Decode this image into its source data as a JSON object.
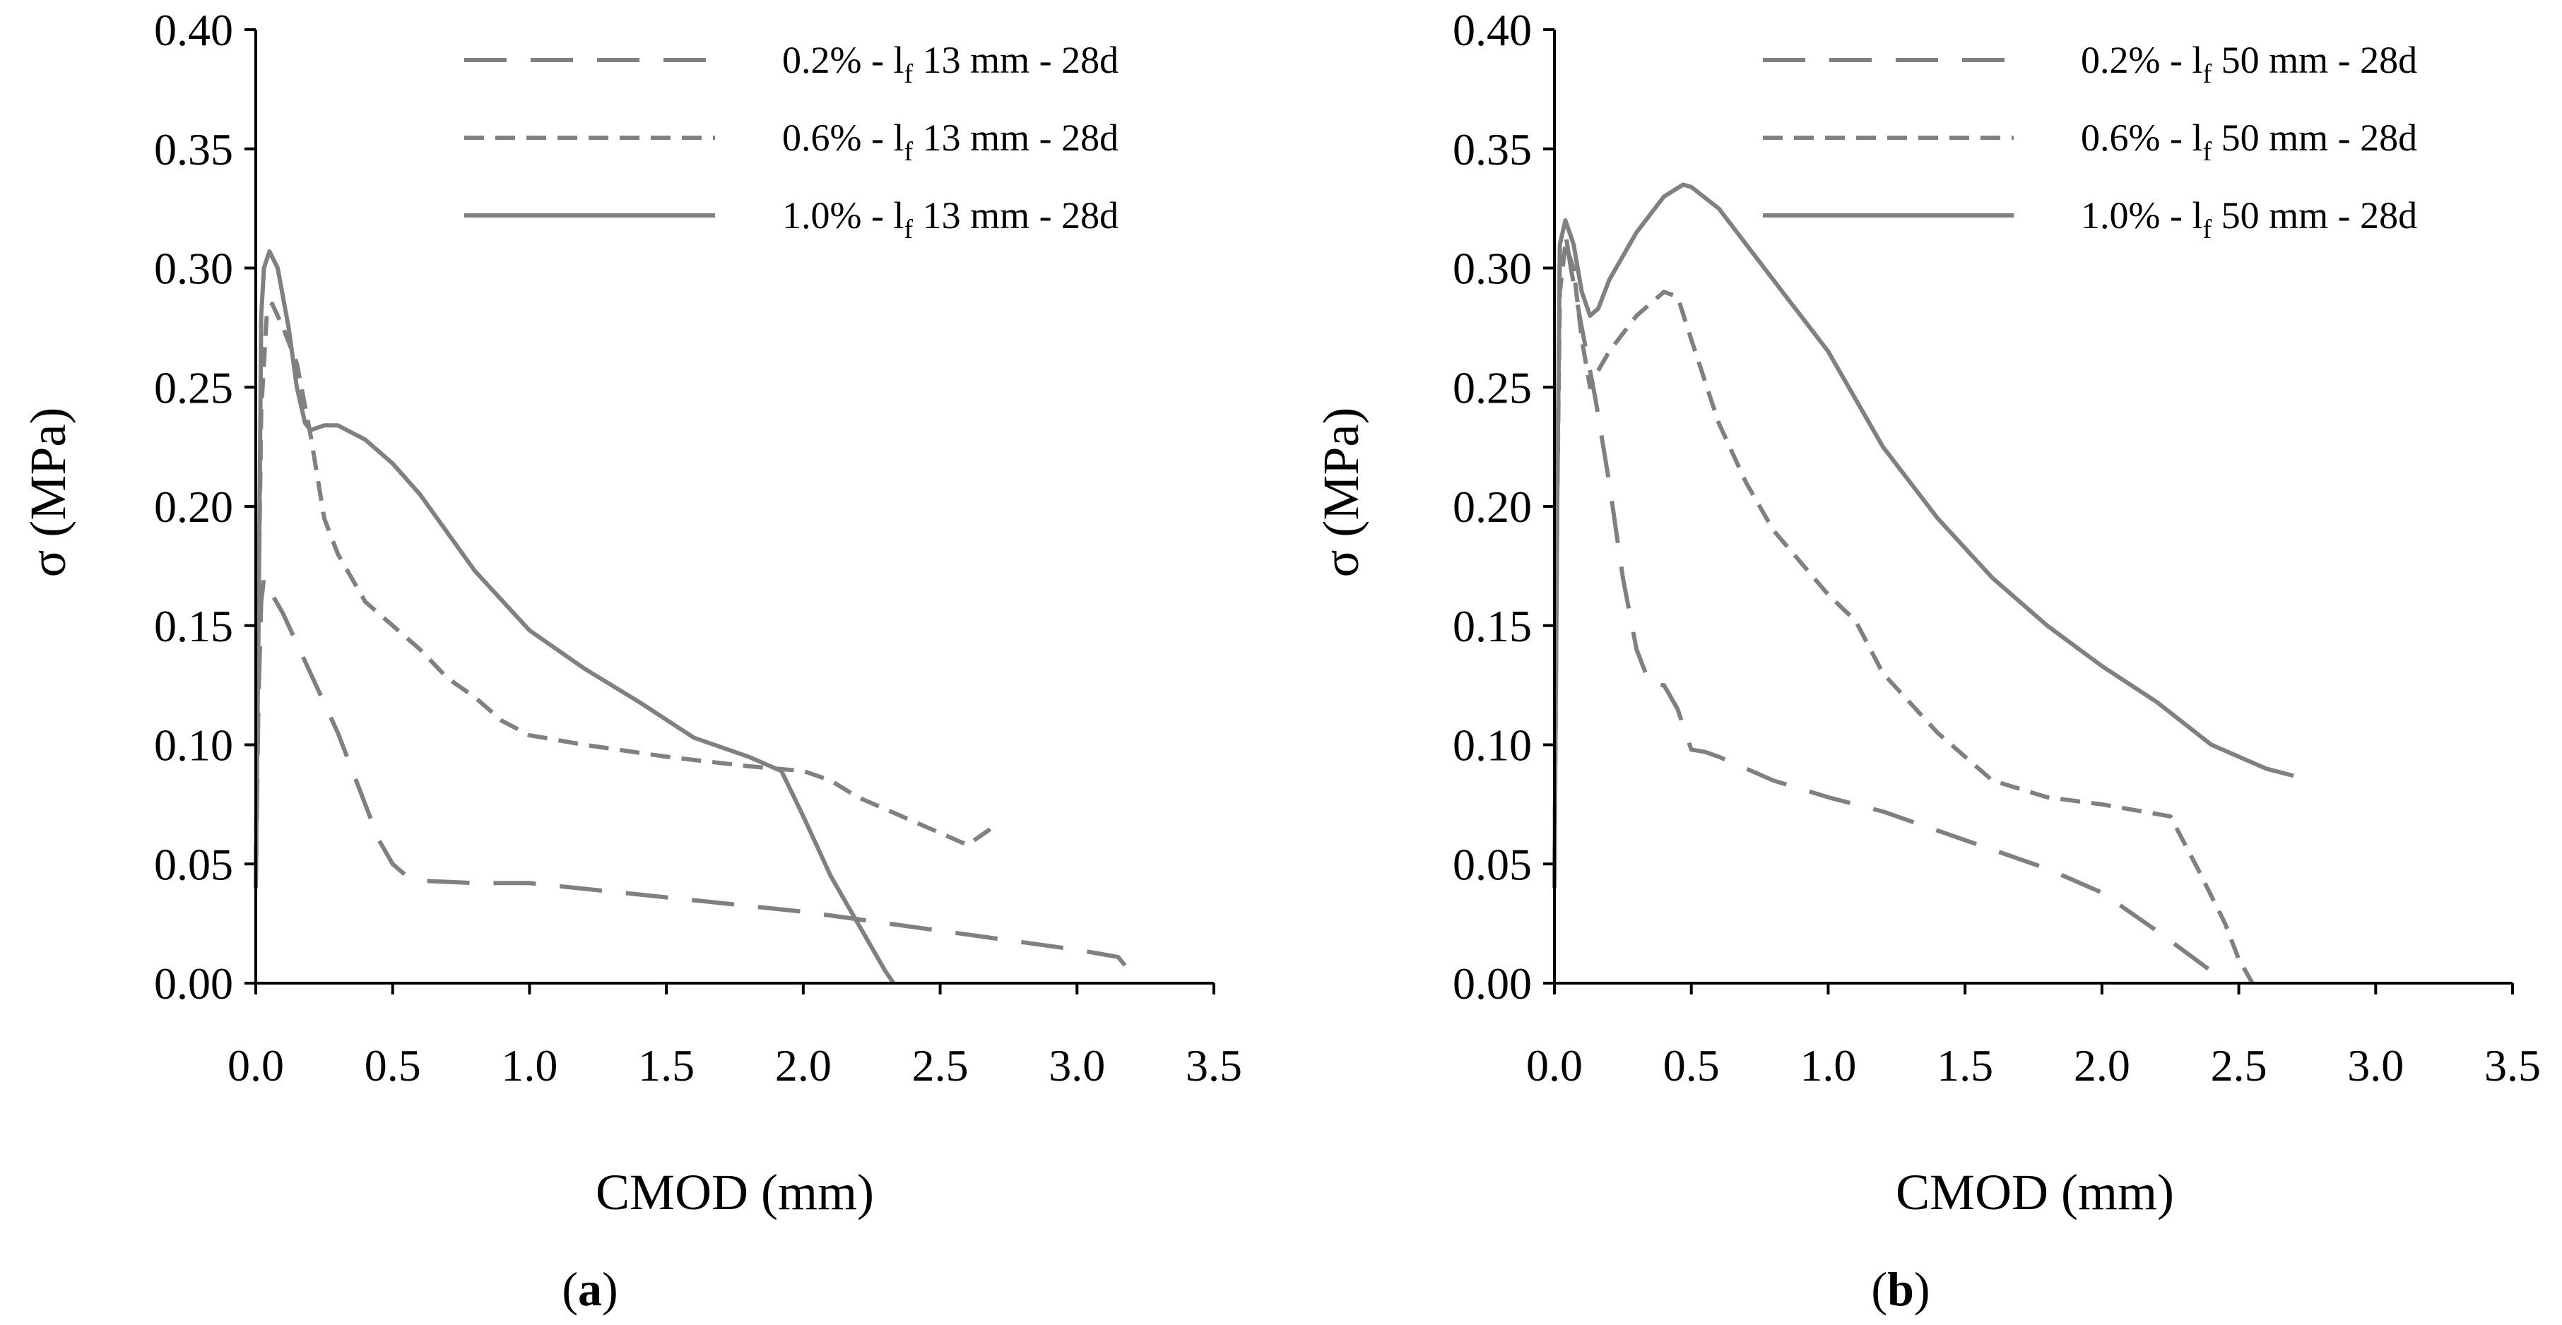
{
  "chart_data": [
    {
      "type": "line",
      "panel_label": "a",
      "xlabel": "CMOD (mm)",
      "ylabel": "σ (MPa)",
      "xlim": [
        0,
        3.5
      ],
      "ylim": [
        0,
        0.4
      ],
      "x_ticks": [
        "0.0",
        "0.5",
        "1.0",
        "1.5",
        "2.0",
        "2.5",
        "3.0",
        "3.5"
      ],
      "y_ticks": [
        "0.00",
        "0.05",
        "0.10",
        "0.15",
        "0.20",
        "0.25",
        "0.30",
        "0.35",
        "0.40"
      ],
      "legend_position": "top-right",
      "series": [
        {
          "legend_prefix": "0.2% - l",
          "legend_sub": "f",
          "legend_suffix": " 13 mm - 28d",
          "dash": "long-dash",
          "color": "#808080",
          "x": [
            0,
            0.01,
            0.02,
            0.03,
            0.05,
            0.1,
            0.2,
            0.3,
            0.4,
            0.45,
            0.5,
            0.55,
            0.6,
            0.8,
            1.0,
            1.5,
            2.0,
            2.5,
            3.0,
            3.15,
            3.2,
            3.22
          ],
          "y": [
            0.04,
            0.12,
            0.16,
            0.17,
            0.165,
            0.155,
            0.13,
            0.105,
            0.075,
            0.06,
            0.05,
            0.045,
            0.043,
            0.042,
            0.042,
            0.036,
            0.03,
            0.022,
            0.014,
            0.011,
            0.004,
            0.0
          ]
        },
        {
          "legend_prefix": "0.6% - l",
          "legend_sub": "f",
          "legend_suffix": " 13 mm - 28d",
          "dash": "short-dash",
          "color": "#808080",
          "x": [
            0,
            0.01,
            0.02,
            0.04,
            0.06,
            0.1,
            0.15,
            0.2,
            0.25,
            0.3,
            0.4,
            0.5,
            0.6,
            0.7,
            0.8,
            0.9,
            1.0,
            1.2,
            1.5,
            1.8,
            2.0,
            2.1,
            2.2,
            2.4,
            2.6,
            2.7
          ],
          "y": [
            0.05,
            0.16,
            0.24,
            0.28,
            0.285,
            0.275,
            0.26,
            0.23,
            0.195,
            0.18,
            0.16,
            0.15,
            0.14,
            0.128,
            0.12,
            0.11,
            0.104,
            0.1,
            0.095,
            0.091,
            0.089,
            0.085,
            0.078,
            0.068,
            0.058,
            0.066
          ]
        },
        {
          "legend_prefix": "1.0% - l",
          "legend_sub": "f",
          "legend_suffix": " 13 mm - 28d",
          "dash": "solid",
          "color": "#808080",
          "x": [
            0,
            0.01,
            0.02,
            0.03,
            0.05,
            0.08,
            0.12,
            0.15,
            0.18,
            0.2,
            0.25,
            0.3,
            0.4,
            0.5,
            0.6,
            0.8,
            1.0,
            1.2,
            1.4,
            1.6,
            1.8,
            1.92,
            2.0,
            2.1,
            2.2,
            2.3,
            2.33
          ],
          "y": [
            0.04,
            0.15,
            0.28,
            0.3,
            0.307,
            0.3,
            0.275,
            0.25,
            0.235,
            0.232,
            0.234,
            0.234,
            0.228,
            0.218,
            0.205,
            0.173,
            0.148,
            0.132,
            0.118,
            0.103,
            0.095,
            0.089,
            0.07,
            0.045,
            0.025,
            0.005,
            0.0
          ]
        }
      ]
    },
    {
      "type": "line",
      "panel_label": "b",
      "xlabel": "CMOD (mm)",
      "ylabel": "σ (MPa)",
      "xlim": [
        0,
        3.5
      ],
      "ylim": [
        0,
        0.4
      ],
      "x_ticks": [
        "0.0",
        "0.5",
        "1.0",
        "1.5",
        "2.0",
        "2.5",
        "3.0",
        "3.5"
      ],
      "y_ticks": [
        "0.00",
        "0.05",
        "0.10",
        "0.15",
        "0.20",
        "0.25",
        "0.30",
        "0.35",
        "0.40"
      ],
      "legend_position": "top-right",
      "series": [
        {
          "legend_prefix": "0.2% - l",
          "legend_sub": "f",
          "legend_suffix": " 50 mm - 28d",
          "dash": "long-dash",
          "color": "#808080",
          "x": [
            0,
            0.01,
            0.02,
            0.04,
            0.06,
            0.1,
            0.15,
            0.2,
            0.25,
            0.3,
            0.35,
            0.4,
            0.45,
            0.5,
            0.55,
            0.6,
            0.8,
            1.0,
            1.2,
            1.5,
            1.8,
            2.0,
            2.2,
            2.4,
            2.45
          ],
          "y": [
            0.04,
            0.2,
            0.31,
            0.315,
            0.3,
            0.275,
            0.245,
            0.21,
            0.17,
            0.14,
            0.125,
            0.125,
            0.115,
            0.098,
            0.097,
            0.095,
            0.085,
            0.078,
            0.072,
            0.06,
            0.048,
            0.038,
            0.022,
            0.005,
            0.0
          ]
        },
        {
          "legend_prefix": "0.6% - l",
          "legend_sub": "f",
          "legend_suffix": " 50 mm - 28d",
          "dash": "short-dash",
          "color": "#808080",
          "x": [
            0,
            0.01,
            0.02,
            0.04,
            0.07,
            0.1,
            0.13,
            0.15,
            0.2,
            0.3,
            0.4,
            0.45,
            0.5,
            0.6,
            0.7,
            0.8,
            1.0,
            1.1,
            1.2,
            1.4,
            1.6,
            1.8,
            2.0,
            2.25,
            2.35,
            2.45,
            2.5,
            2.55
          ],
          "y": [
            0.04,
            0.2,
            0.29,
            0.31,
            0.3,
            0.27,
            0.25,
            0.255,
            0.265,
            0.28,
            0.29,
            0.288,
            0.27,
            0.235,
            0.21,
            0.19,
            0.163,
            0.152,
            0.13,
            0.105,
            0.085,
            0.078,
            0.075,
            0.07,
            0.048,
            0.025,
            0.01,
            0.0
          ]
        },
        {
          "legend_prefix": "1.0% - l",
          "legend_sub": "f",
          "legend_suffix": " 50 mm - 28d",
          "dash": "solid",
          "color": "#808080",
          "x": [
            0,
            0.01,
            0.02,
            0.04,
            0.07,
            0.1,
            0.13,
            0.16,
            0.2,
            0.3,
            0.4,
            0.47,
            0.5,
            0.6,
            0.7,
            0.8,
            1.0,
            1.2,
            1.4,
            1.6,
            1.8,
            2.0,
            2.2,
            2.4,
            2.6,
            2.7
          ],
          "y": [
            0.04,
            0.2,
            0.31,
            0.32,
            0.31,
            0.29,
            0.28,
            0.283,
            0.295,
            0.315,
            0.33,
            0.335,
            0.334,
            0.325,
            0.31,
            0.295,
            0.265,
            0.225,
            0.195,
            0.17,
            0.15,
            0.133,
            0.118,
            0.1,
            0.09,
            0.087
          ]
        }
      ]
    }
  ],
  "captions": [
    {
      "open": "(",
      "letter": "a",
      "close": ")"
    },
    {
      "open": "(",
      "letter": "b",
      "close": ")"
    }
  ]
}
